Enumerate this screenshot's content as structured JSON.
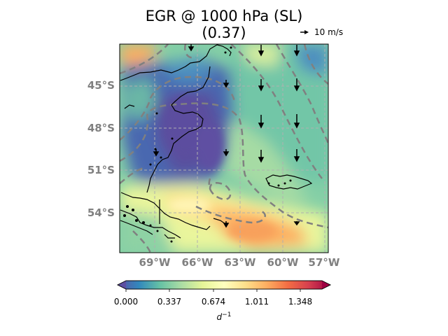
{
  "title": {
    "line1": "EGR @ 1000 hPa (SL)",
    "line2": "(0.37)"
  },
  "quiver_key": {
    "label": "10 m/s",
    "value": 10,
    "unit": "m/s"
  },
  "map": {
    "lat_labels": [
      "45°S",
      "48°S",
      "51°S",
      "54°S"
    ],
    "lon_labels": [
      "69°W",
      "66°W",
      "63°W",
      "60°W",
      "57°W"
    ],
    "lat_values": [
      -45,
      -48,
      -51,
      -54
    ],
    "lon_values": [
      -69,
      -66,
      -63,
      -60,
      -57
    ],
    "extent": {
      "lon_min": -71.5,
      "lon_max": -56.8,
      "lat_min": -57.9,
      "lat_max": -43.1
    },
    "gridlines": true
  },
  "colorbar": {
    "ticks": [
      "0.000",
      "0.337",
      "0.674",
      "1.011",
      "1.348"
    ],
    "tick_values": [
      0,
      0.337,
      0.674,
      1.011,
      1.348
    ],
    "range": [
      0,
      1.516
    ],
    "colormap": "Spectral_r",
    "extend": "both",
    "units": "d",
    "units_exp": "−1"
  },
  "colors": {
    "contour": "#808080",
    "coast": "#000000",
    "grid": "#b0b0b0"
  }
}
